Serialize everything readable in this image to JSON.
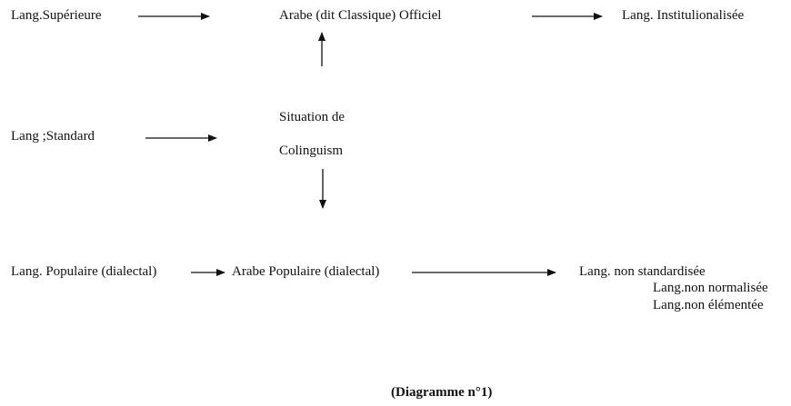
{
  "nodes": {
    "lang_superieure": "Lang.Supérieure",
    "arabe_classique": "Arabe (dit Classique) Officiel",
    "lang_institutionalisee": "Lang. Institulionalisée",
    "situation_line1": "Situation de",
    "situation_line2": "Colinguism",
    "lang_standard": "Lang ;Standard",
    "lang_populaire": "Lang. Populaire (dialectal)",
    "arabe_populaire": "Arabe Populaire (dialectal)",
    "non_standardisee": "Lang. non standardisée",
    "non_normalisee": "Lang.non normalisée",
    "non_elementee": "Lang.non élémentée"
  },
  "caption": "(Diagramme n°1)",
  "edges": [
    {
      "from": "lang_superieure",
      "to": "arabe_classique"
    },
    {
      "from": "arabe_classique",
      "to": "lang_institutionalisee"
    },
    {
      "from": "situation",
      "to": "arabe_classique"
    },
    {
      "from": "lang_standard",
      "to": "situation"
    },
    {
      "from": "situation",
      "to": "arabe_populaire"
    },
    {
      "from": "lang_populaire",
      "to": "arabe_populaire"
    },
    {
      "from": "arabe_populaire",
      "to": "non_standardisee"
    }
  ]
}
